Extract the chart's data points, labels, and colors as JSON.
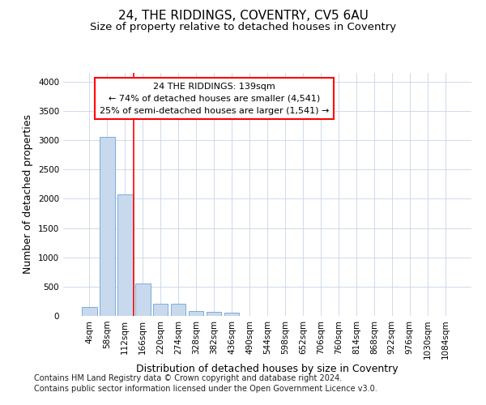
{
  "title": "24, THE RIDDINGS, COVENTRY, CV5 6AU",
  "subtitle": "Size of property relative to detached houses in Coventry",
  "xlabel": "Distribution of detached houses by size in Coventry",
  "ylabel": "Number of detached properties",
  "footnote1": "Contains HM Land Registry data © Crown copyright and database right 2024.",
  "footnote2": "Contains public sector information licensed under the Open Government Licence v3.0.",
  "bar_labels": [
    "4sqm",
    "58sqm",
    "112sqm",
    "166sqm",
    "220sqm",
    "274sqm",
    "328sqm",
    "382sqm",
    "436sqm",
    "490sqm",
    "544sqm",
    "598sqm",
    "652sqm",
    "706sqm",
    "760sqm",
    "814sqm",
    "868sqm",
    "922sqm",
    "976sqm",
    "1030sqm",
    "1084sqm"
  ],
  "bar_heights": [
    150,
    3060,
    2070,
    560,
    210,
    210,
    80,
    65,
    55,
    0,
    0,
    0,
    0,
    0,
    0,
    0,
    0,
    0,
    0,
    0,
    0
  ],
  "bar_color": "#c8d9ee",
  "bar_edge_color": "#7aadd4",
  "annotation_line1": "24 THE RIDDINGS: 139sqm",
  "annotation_line2": "← 74% of detached houses are smaller (4,541)",
  "annotation_line3": "25% of semi-detached houses are larger (1,541) →",
  "redline_x": 2.5,
  "ylim": [
    0,
    4150
  ],
  "yticks": [
    0,
    500,
    1000,
    1500,
    2000,
    2500,
    3000,
    3500,
    4000
  ],
  "background_color": "#ffffff",
  "grid_color": "#c8d4e8",
  "title_fontsize": 11,
  "subtitle_fontsize": 9.5,
  "ylabel_fontsize": 9,
  "xlabel_fontsize": 9,
  "tick_fontsize": 7.5,
  "annotation_fontsize": 8,
  "footnote_fontsize": 7
}
